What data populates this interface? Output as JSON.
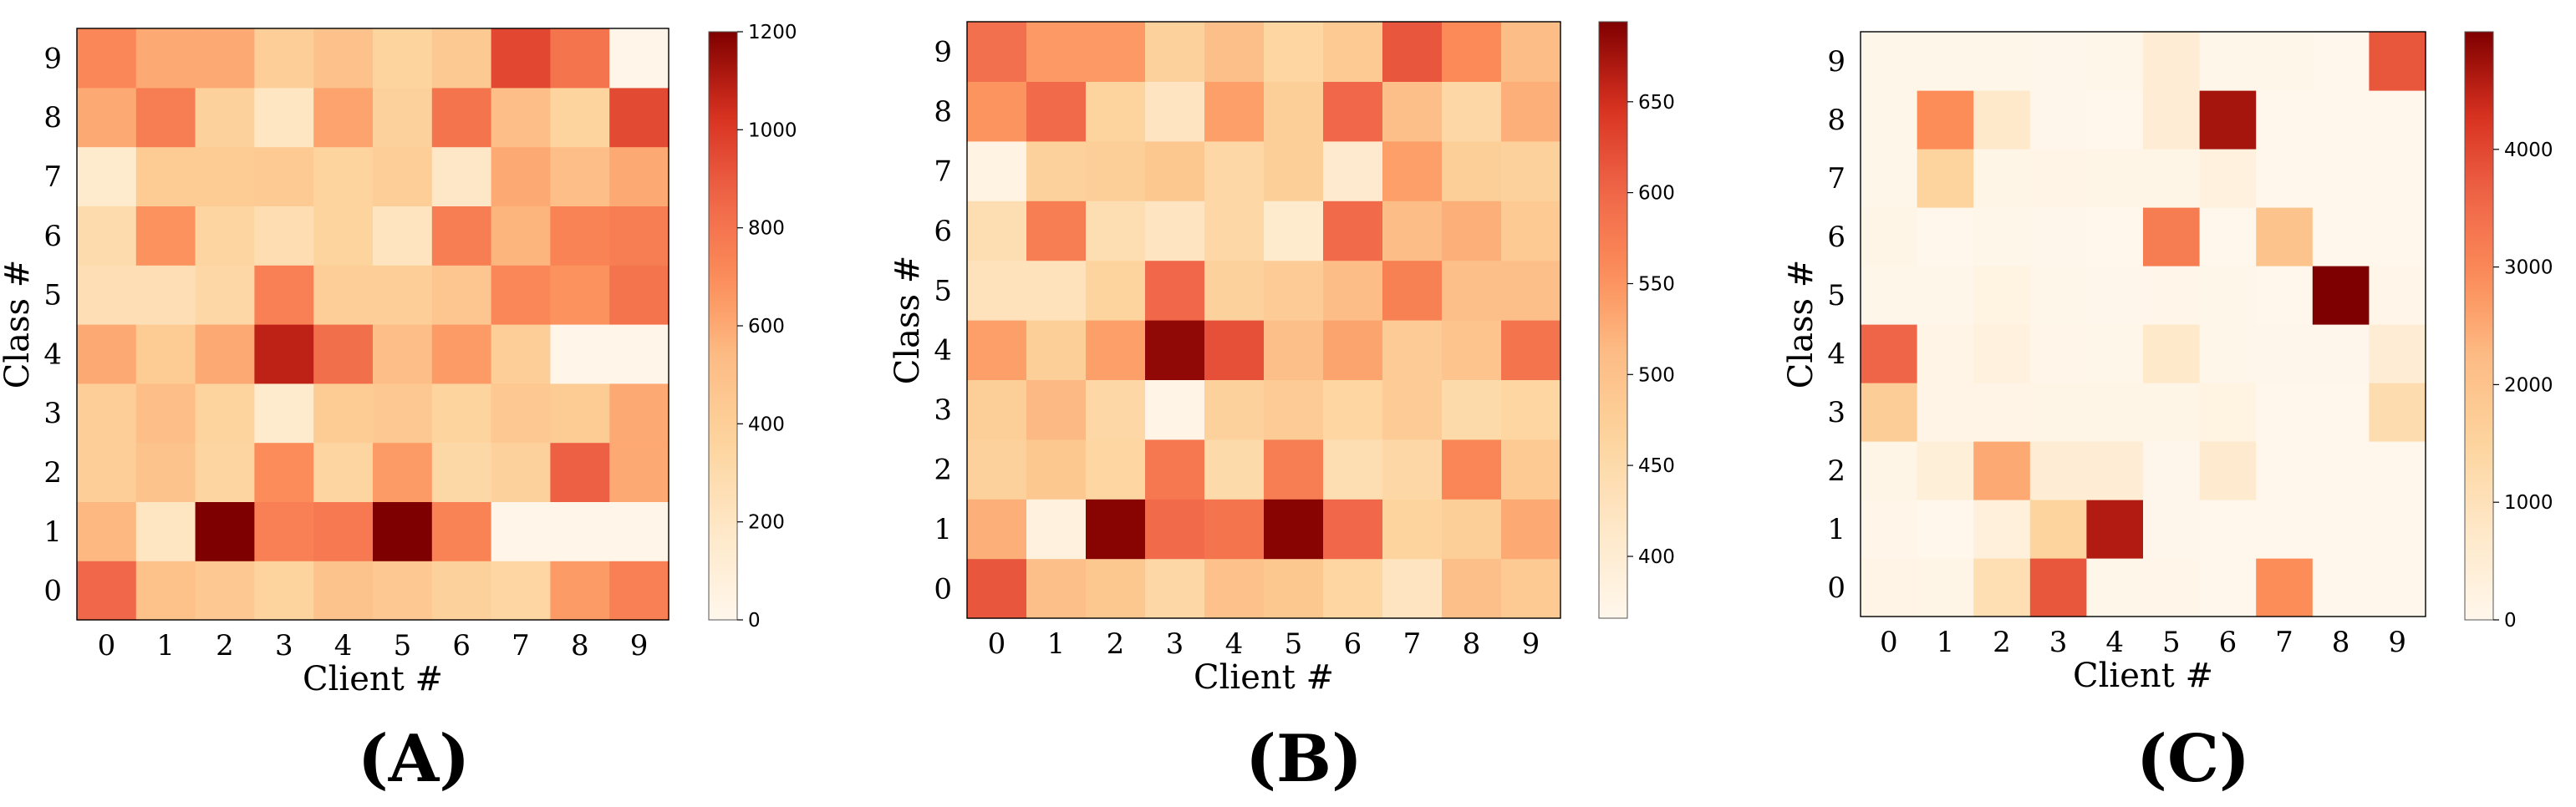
{
  "chart_data": [
    {
      "type": "heatmap",
      "panel_label": "(A)",
      "xlabel": "Client #",
      "ylabel": "Class #",
      "x_categories": [
        "0",
        "1",
        "2",
        "3",
        "4",
        "5",
        "6",
        "7",
        "8",
        "9"
      ],
      "y_categories": [
        "0",
        "1",
        "2",
        "3",
        "4",
        "5",
        "6",
        "7",
        "8",
        "9"
      ],
      "colorbar": {
        "range": [
          0,
          1200
        ],
        "ticks": [
          0,
          200,
          400,
          600,
          800,
          1000,
          1200
        ]
      },
      "values": [
        [
          850,
          500,
          450,
          360,
          480,
          450,
          380,
          340,
          650,
          750
        ],
        [
          550,
          200,
          1200,
          750,
          780,
          1200,
          740,
          20,
          20,
          20
        ],
        [
          400,
          480,
          350,
          700,
          350,
          650,
          320,
          380,
          880,
          600
        ],
        [
          400,
          520,
          360,
          160,
          420,
          450,
          360,
          450,
          420,
          600
        ],
        [
          600,
          420,
          600,
          1080,
          820,
          520,
          650,
          400,
          20,
          20
        ],
        [
          260,
          260,
          330,
          750,
          400,
          400,
          460,
          720,
          680,
          800
        ],
        [
          300,
          680,
          350,
          280,
          360,
          220,
          760,
          560,
          740,
          760
        ],
        [
          150,
          420,
          420,
          430,
          360,
          400,
          190,
          600,
          520,
          600
        ],
        [
          600,
          760,
          380,
          200,
          620,
          380,
          800,
          520,
          360,
          950
        ],
        [
          720,
          600,
          600,
          400,
          490,
          360,
          440,
          960,
          800,
          20
        ]
      ]
    },
    {
      "type": "heatmap",
      "panel_label": "(B)",
      "xlabel": "Client #",
      "ylabel": "Class #",
      "x_categories": [
        "0",
        "1",
        "2",
        "3",
        "4",
        "5",
        "6",
        "7",
        "8",
        "9"
      ],
      "y_categories": [
        "0",
        "1",
        "2",
        "3",
        "4",
        "5",
        "6",
        "7",
        "8",
        "9"
      ],
      "colorbar": {
        "range": [
          366,
          694
        ],
        "ticks": [
          400,
          450,
          500,
          550,
          600,
          650
        ]
      },
      "values": [
        [
          615,
          505,
          490,
          455,
          500,
          490,
          460,
          425,
          505,
          485
        ],
        [
          525,
          385,
          690,
          595,
          585,
          690,
          600,
          465,
          475,
          530
        ],
        [
          470,
          490,
          460,
          580,
          450,
          575,
          440,
          455,
          565,
          485
        ],
        [
          475,
          515,
          455,
          375,
          470,
          480,
          460,
          480,
          450,
          460
        ],
        [
          540,
          475,
          540,
          685,
          620,
          505,
          535,
          480,
          495,
          585
        ],
        [
          430,
          430,
          465,
          600,
          470,
          480,
          510,
          570,
          505,
          505
        ],
        [
          440,
          575,
          440,
          425,
          455,
          410,
          595,
          510,
          525,
          485
        ],
        [
          378,
          470,
          475,
          490,
          455,
          475,
          405,
          540,
          475,
          470
        ],
        [
          550,
          595,
          465,
          425,
          540,
          475,
          600,
          505,
          455,
          525
        ],
        [
          590,
          545,
          545,
          470,
          505,
          460,
          485,
          615,
          560,
          510
        ]
      ]
    },
    {
      "type": "heatmap",
      "panel_label": "(C)",
      "xlabel": "Client #",
      "ylabel": "Class #",
      "x_categories": [
        "0",
        "1",
        "2",
        "3",
        "4",
        "5",
        "6",
        "7",
        "8",
        "9"
      ],
      "y_categories": [
        "0",
        "1",
        "2",
        "3",
        "4",
        "5",
        "6",
        "7",
        "8",
        "9"
      ],
      "colorbar": {
        "range": [
          0,
          5000
        ],
        "ticks": [
          0,
          1000,
          2000,
          3000,
          4000
        ]
      },
      "values": [
        [
          150,
          100,
          1100,
          3800,
          50,
          80,
          0,
          2900,
          0,
          20
        ],
        [
          80,
          0,
          350,
          1500,
          4600,
          30,
          0,
          0,
          0,
          0
        ],
        [
          100,
          400,
          2500,
          500,
          500,
          30,
          600,
          0,
          0,
          0
        ],
        [
          1700,
          150,
          150,
          100,
          100,
          100,
          200,
          0,
          0,
          1200
        ],
        [
          3600,
          150,
          300,
          80,
          50,
          700,
          50,
          30,
          30,
          500
        ],
        [
          50,
          50,
          200,
          50,
          30,
          80,
          50,
          0,
          5000,
          80
        ],
        [
          100,
          0,
          50,
          30,
          0,
          3200,
          0,
          2000,
          0,
          0
        ],
        [
          50,
          1500,
          100,
          150,
          100,
          100,
          300,
          0,
          0,
          0
        ],
        [
          50,
          2900,
          700,
          30,
          0,
          500,
          4700,
          0,
          0,
          0
        ],
        [
          50,
          50,
          50,
          30,
          50,
          500,
          50,
          50,
          0,
          3800
        ]
      ]
    }
  ]
}
